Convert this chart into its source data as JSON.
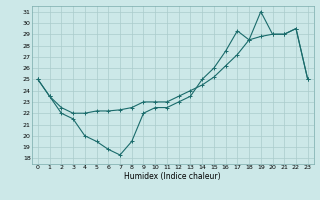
{
  "xlabel": "Humidex (Indice chaleur)",
  "bg_color": "#cce8e8",
  "grid_color": "#aacccc",
  "line_color": "#1a6b6b",
  "xlim": [
    -0.5,
    23.5
  ],
  "ylim": [
    17.5,
    31.5
  ],
  "yticks": [
    18,
    19,
    20,
    21,
    22,
    23,
    24,
    25,
    26,
    27,
    28,
    29,
    30,
    31
  ],
  "xticks": [
    0,
    1,
    2,
    3,
    4,
    5,
    6,
    7,
    8,
    9,
    10,
    11,
    12,
    13,
    14,
    15,
    16,
    17,
    18,
    19,
    20,
    21,
    22,
    23
  ],
  "line1_x": [
    0,
    1,
    2,
    3,
    4,
    5,
    6,
    7,
    8,
    9,
    10,
    11,
    12,
    13,
    14,
    15,
    16,
    17,
    18,
    19,
    20,
    21,
    22,
    23
  ],
  "line1_y": [
    25,
    23.5,
    22,
    21.5,
    20,
    19.5,
    18.8,
    18.3,
    19.5,
    22,
    22.5,
    22.5,
    23,
    23.5,
    25,
    26,
    27.5,
    29.3,
    28.5,
    31,
    29,
    29,
    29.5,
    25
  ],
  "line2_x": [
    0,
    1,
    2,
    3,
    4,
    5,
    6,
    7,
    8,
    9,
    10,
    11,
    12,
    13,
    14,
    15,
    16,
    17,
    18,
    19,
    20,
    21,
    22,
    23
  ],
  "line2_y": [
    25,
    23.5,
    22.5,
    22,
    22,
    22.2,
    22.2,
    22.3,
    22.5,
    23,
    23,
    23,
    23.5,
    24,
    24.5,
    25.2,
    26.2,
    27.2,
    28.5,
    28.8,
    29,
    29,
    29.5,
    25
  ]
}
